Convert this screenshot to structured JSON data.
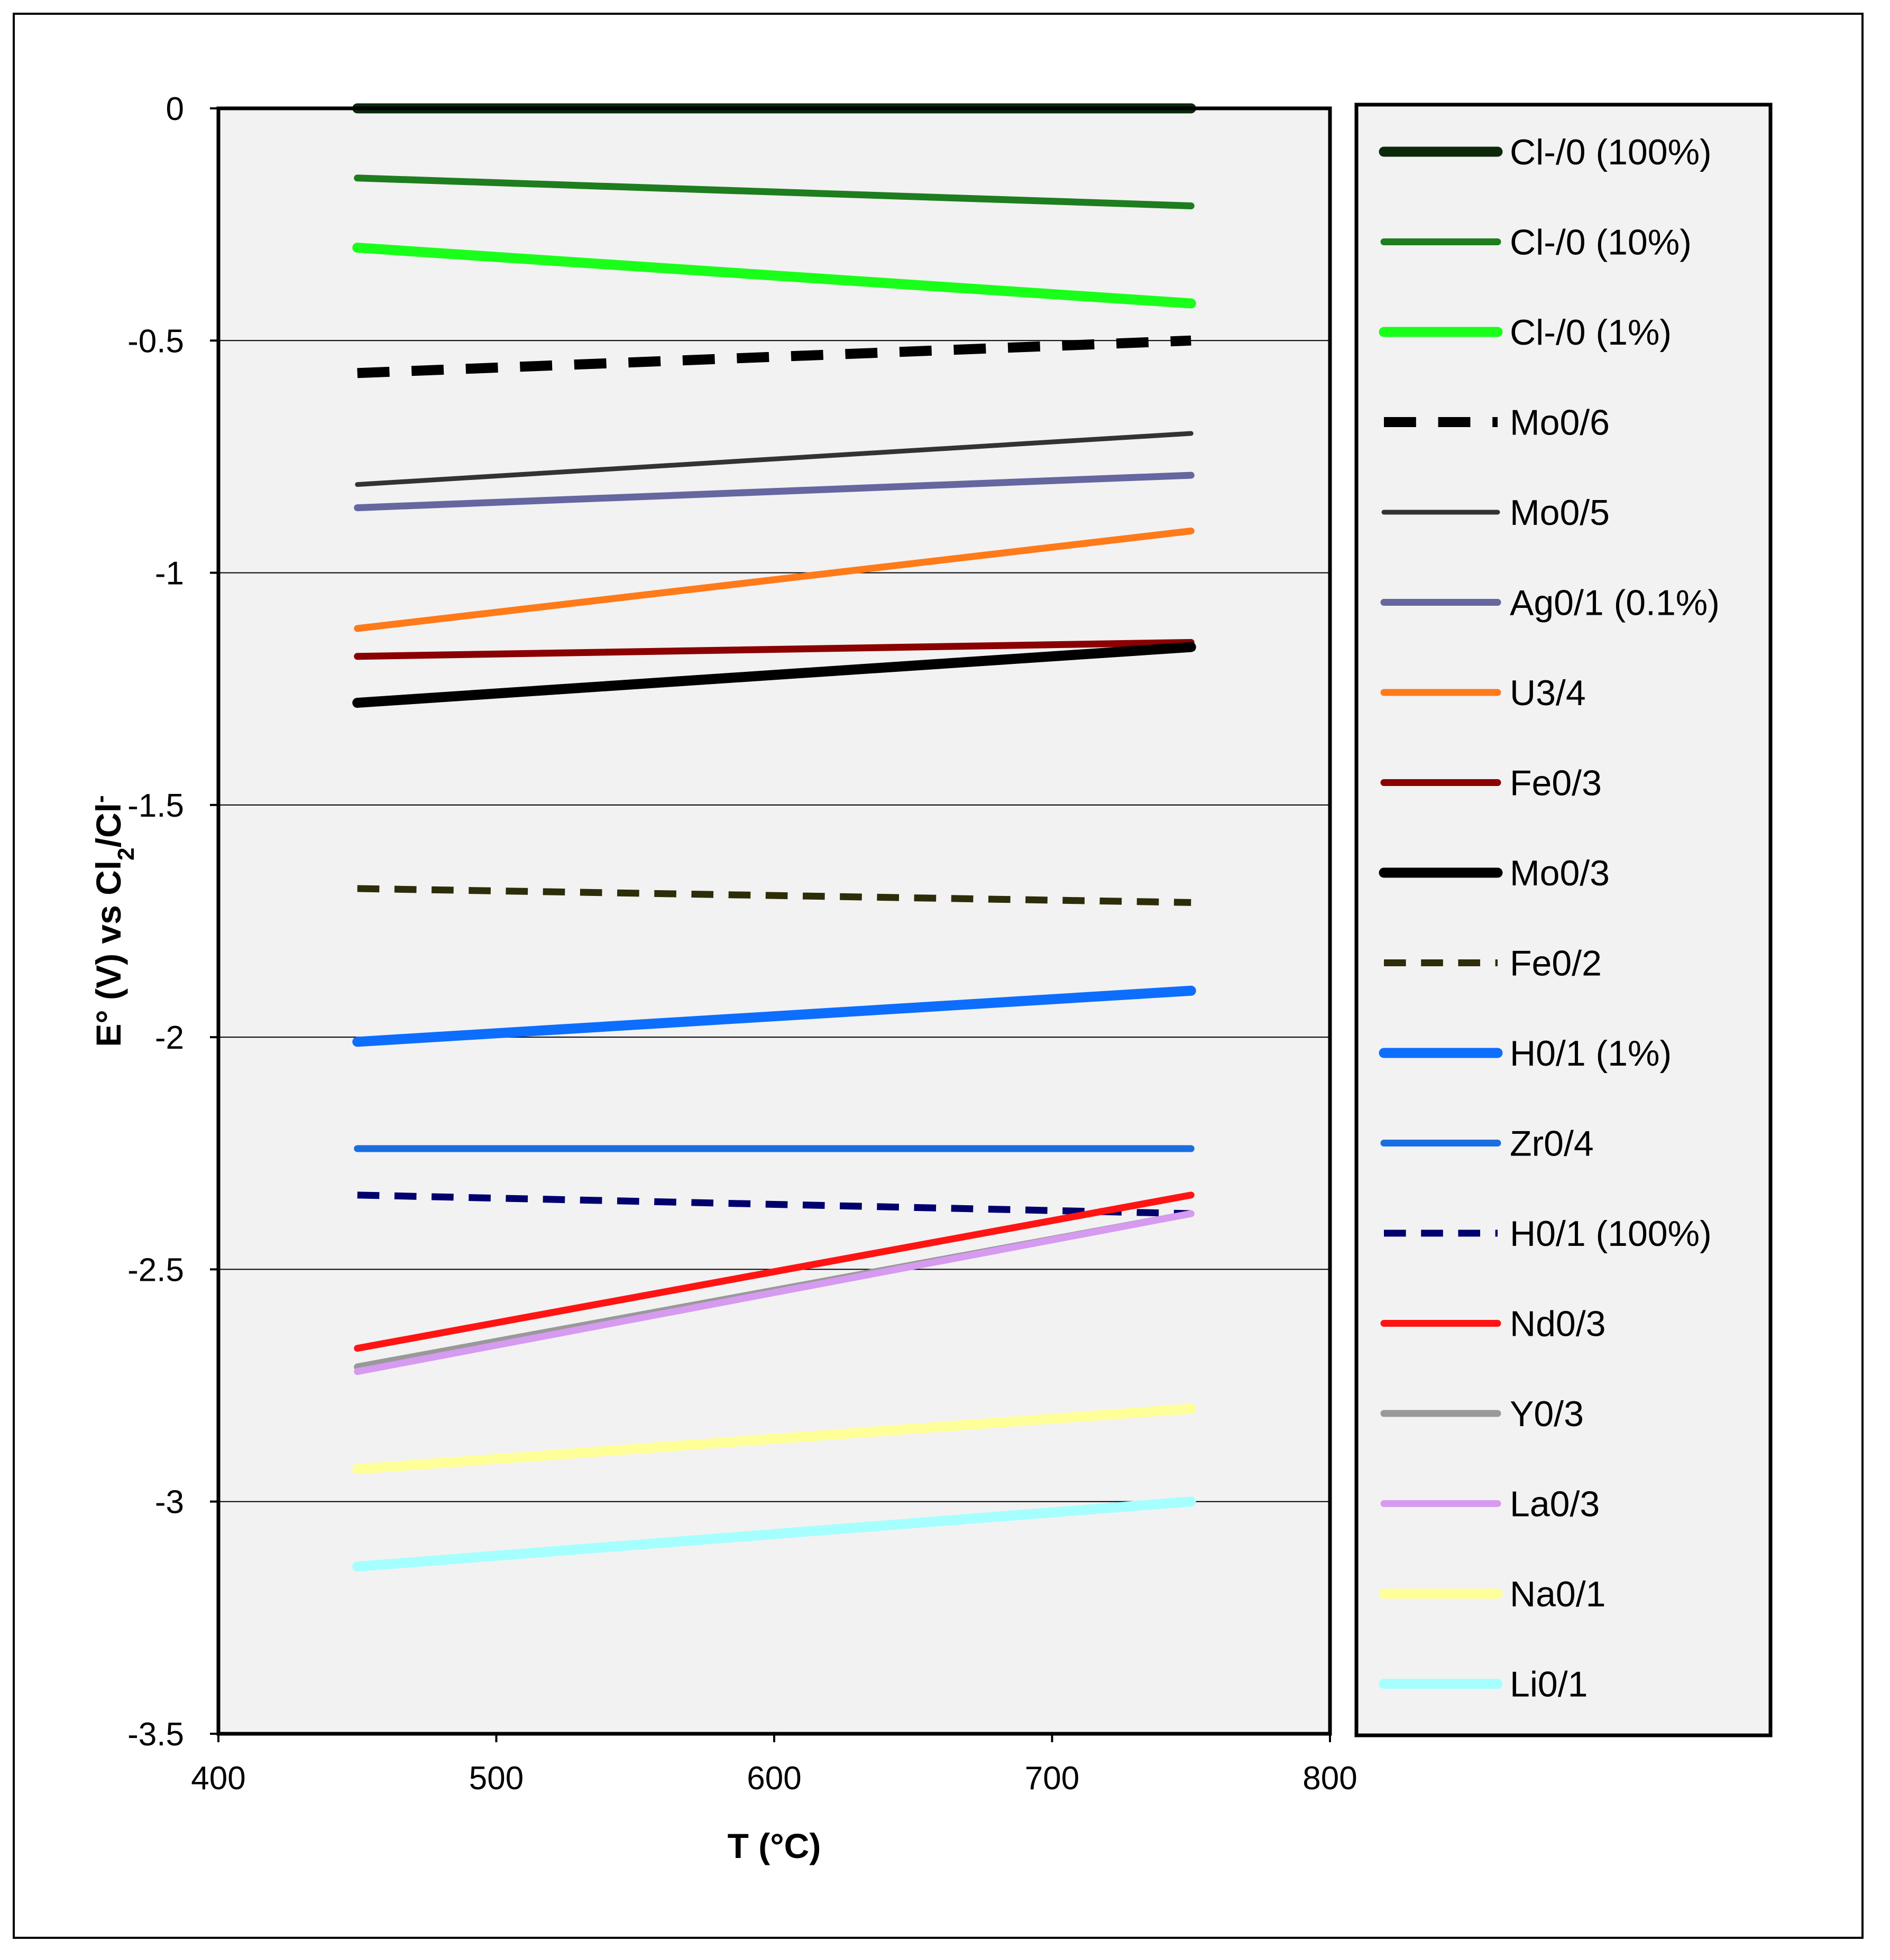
{
  "chart_data": {
    "type": "line",
    "title": "",
    "xlabel": "T (°C)",
    "ylabel": "E° (V) vs Cl2/Cl-",
    "ylabel_parts": {
      "main": "E° (V) vs Cl",
      "sub": "2",
      "mid": "/Cl",
      "sup": "-"
    },
    "xlim": [
      400,
      800
    ],
    "ylim": [
      -3.5,
      0
    ],
    "x_ticks": [
      400,
      500,
      600,
      700,
      800
    ],
    "y_ticks": [
      0,
      -0.5,
      -1,
      -1.5,
      -2,
      -2.5,
      -3,
      -3.5
    ],
    "grid": "horizontal",
    "legend_position": "right",
    "series": [
      {
        "name": "Cl-/0 (100%)",
        "x": [
          450,
          750
        ],
        "y": [
          0.0,
          0.0
        ],
        "color": "#0a2a0a",
        "style": "solid",
        "weight": "heavy"
      },
      {
        "name": "Cl-/0 (10%)",
        "x": [
          450,
          750
        ],
        "y": [
          -0.15,
          -0.21
        ],
        "color": "#1e7d1e",
        "style": "solid",
        "weight": "medium"
      },
      {
        "name": "Cl-/0 (1%)",
        "x": [
          450,
          750
        ],
        "y": [
          -0.3,
          -0.42
        ],
        "color": "#19ff19",
        "style": "solid",
        "weight": "heavy"
      },
      {
        "name": "Mo0/6",
        "x": [
          450,
          750
        ],
        "y": [
          -0.57,
          -0.5
        ],
        "color": "#000000",
        "style": "dashed",
        "weight": "heavy"
      },
      {
        "name": "Mo0/5",
        "x": [
          450,
          750
        ],
        "y": [
          -0.81,
          -0.7
        ],
        "color": "#333333",
        "style": "solid",
        "weight": "light"
      },
      {
        "name": "Ag0/1 (0.1%)",
        "x": [
          450,
          750
        ],
        "y": [
          -0.86,
          -0.79
        ],
        "color": "#6666a0",
        "style": "solid",
        "weight": "medium"
      },
      {
        "name": "U3/4",
        "x": [
          450,
          750
        ],
        "y": [
          -1.12,
          -0.91
        ],
        "color": "#ff7a19",
        "style": "solid",
        "weight": "medium"
      },
      {
        "name": "Fe0/3",
        "x": [
          450,
          750
        ],
        "y": [
          -1.18,
          -1.15
        ],
        "color": "#8b0000",
        "style": "solid",
        "weight": "medium"
      },
      {
        "name": "Mo0/3",
        "x": [
          450,
          750
        ],
        "y": [
          -1.28,
          -1.16
        ],
        "color": "#000000",
        "style": "solid",
        "weight": "heavy"
      },
      {
        "name": "Fe0/2",
        "x": [
          450,
          750
        ],
        "y": [
          -1.68,
          -1.71
        ],
        "color": "#2d2d0a",
        "style": "dashed",
        "weight": "medium"
      },
      {
        "name": "H0/1 (1%)",
        "x": [
          450,
          750
        ],
        "y": [
          -2.01,
          -1.9
        ],
        "color": "#0d6efd",
        "style": "solid",
        "weight": "heavy"
      },
      {
        "name": "Zr0/4",
        "x": [
          450,
          750
        ],
        "y": [
          -2.24,
          -2.24
        ],
        "color": "#1a6fe0",
        "style": "solid",
        "weight": "medium"
      },
      {
        "name": "H0/1 (100%)",
        "x": [
          450,
          750
        ],
        "y": [
          -2.34,
          -2.38
        ],
        "color": "#00006e",
        "style": "dashed",
        "weight": "medium"
      },
      {
        "name": "Nd0/3",
        "x": [
          450,
          750
        ],
        "y": [
          -2.67,
          -2.34
        ],
        "color": "#ff1414",
        "style": "solid",
        "weight": "medium"
      },
      {
        "name": "Y0/3",
        "x": [
          450,
          750
        ],
        "y": [
          -2.71,
          -2.38
        ],
        "color": "#999999",
        "style": "solid",
        "weight": "medium"
      },
      {
        "name": "La0/3",
        "x": [
          450,
          750
        ],
        "y": [
          -2.72,
          -2.38
        ],
        "color": "#d69af0",
        "style": "solid",
        "weight": "medium"
      },
      {
        "name": "Na0/1",
        "x": [
          450,
          750
        ],
        "y": [
          -2.93,
          -2.8
        ],
        "color": "#ffff99",
        "style": "solid",
        "weight": "heavy"
      },
      {
        "name": "Li0/1",
        "x": [
          450,
          750
        ],
        "y": [
          -3.14,
          -3.0
        ],
        "color": "#a6ffff",
        "style": "solid",
        "weight": "heavy"
      }
    ]
  }
}
